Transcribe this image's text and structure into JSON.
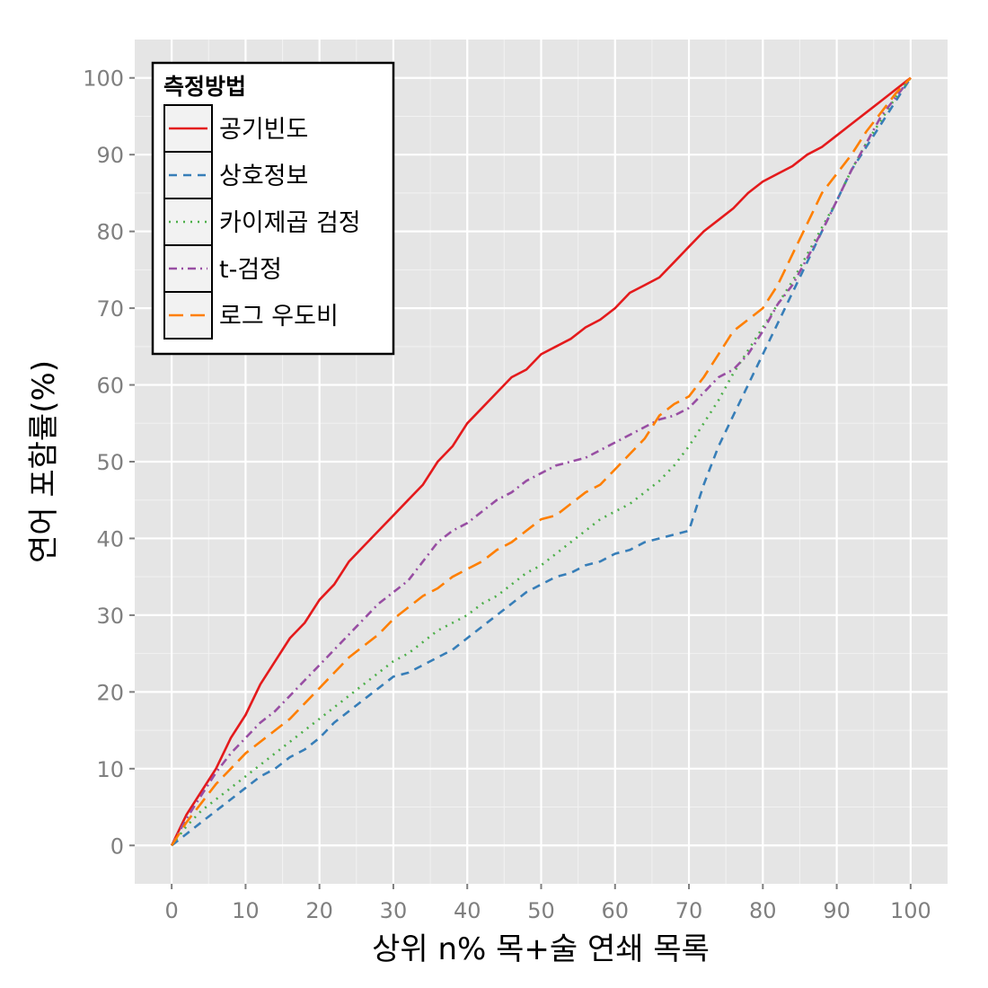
{
  "chart_data": {
    "type": "line",
    "title": "",
    "xlabel": "상위 n% 목+술 연쇄 목록",
    "ylabel": "연어 포함률(%)",
    "xlim": [
      -5,
      105
    ],
    "ylim": [
      -5,
      105
    ],
    "x_ticks": [
      0,
      10,
      20,
      30,
      40,
      50,
      60,
      70,
      80,
      90,
      100
    ],
    "y_ticks": [
      0,
      10,
      20,
      30,
      40,
      50,
      60,
      70,
      80,
      90,
      100
    ],
    "grid": true,
    "legend": {
      "title": "측정방법",
      "position": "top-left"
    },
    "series": [
      {
        "name": "공기빈도",
        "color": "#e41a1c",
        "dash": "",
        "points": [
          [
            0,
            0
          ],
          [
            2,
            4
          ],
          [
            4,
            7
          ],
          [
            6,
            10
          ],
          [
            8,
            14
          ],
          [
            10,
            17
          ],
          [
            12,
            21
          ],
          [
            14,
            24
          ],
          [
            16,
            27
          ],
          [
            18,
            29
          ],
          [
            20,
            32
          ],
          [
            22,
            34
          ],
          [
            24,
            37
          ],
          [
            26,
            39
          ],
          [
            28,
            41
          ],
          [
            30,
            43
          ],
          [
            32,
            45
          ],
          [
            34,
            47
          ],
          [
            36,
            50
          ],
          [
            38,
            52
          ],
          [
            40,
            55
          ],
          [
            42,
            57
          ],
          [
            44,
            59
          ],
          [
            46,
            61
          ],
          [
            48,
            62
          ],
          [
            50,
            64
          ],
          [
            52,
            65
          ],
          [
            54,
            66
          ],
          [
            56,
            67.5
          ],
          [
            58,
            68.5
          ],
          [
            60,
            70
          ],
          [
            62,
            72
          ],
          [
            64,
            73
          ],
          [
            66,
            74
          ],
          [
            68,
            76
          ],
          [
            70,
            78
          ],
          [
            72,
            80
          ],
          [
            74,
            81.5
          ],
          [
            76,
            83
          ],
          [
            78,
            85
          ],
          [
            80,
            86.5
          ],
          [
            82,
            87.5
          ],
          [
            84,
            88.5
          ],
          [
            86,
            90
          ],
          [
            88,
            91
          ],
          [
            90,
            92.5
          ],
          [
            92,
            94
          ],
          [
            94,
            95.5
          ],
          [
            96,
            97
          ],
          [
            98,
            98.5
          ],
          [
            100,
            100
          ]
        ]
      },
      {
        "name": "상호정보",
        "color": "#377eb8",
        "dash": "9,7",
        "points": [
          [
            0,
            0
          ],
          [
            2,
            1.5
          ],
          [
            4,
            3
          ],
          [
            6,
            4.5
          ],
          [
            8,
            6
          ],
          [
            10,
            7.5
          ],
          [
            12,
            9
          ],
          [
            14,
            10
          ],
          [
            16,
            11.5
          ],
          [
            18,
            12.5
          ],
          [
            20,
            14
          ],
          [
            22,
            16
          ],
          [
            24,
            17.5
          ],
          [
            26,
            19
          ],
          [
            28,
            20.5
          ],
          [
            30,
            22
          ],
          [
            32,
            22.5
          ],
          [
            34,
            23.5
          ],
          [
            36,
            24.5
          ],
          [
            38,
            25.5
          ],
          [
            40,
            27
          ],
          [
            42,
            28.5
          ],
          [
            44,
            30
          ],
          [
            46,
            31.5
          ],
          [
            48,
            33
          ],
          [
            50,
            34
          ],
          [
            52,
            35
          ],
          [
            54,
            35.5
          ],
          [
            56,
            36.5
          ],
          [
            58,
            37
          ],
          [
            60,
            38
          ],
          [
            62,
            38.5
          ],
          [
            64,
            39.5
          ],
          [
            66,
            40
          ],
          [
            68,
            40.5
          ],
          [
            70,
            41
          ],
          [
            72,
            47
          ],
          [
            74,
            52
          ],
          [
            76,
            56
          ],
          [
            78,
            60
          ],
          [
            80,
            64
          ],
          [
            82,
            68
          ],
          [
            84,
            72
          ],
          [
            86,
            76
          ],
          [
            88,
            80
          ],
          [
            90,
            84
          ],
          [
            92,
            88
          ],
          [
            94,
            91
          ],
          [
            96,
            94
          ],
          [
            98,
            97
          ],
          [
            100,
            100
          ]
        ]
      },
      {
        "name": "카이제곱 검정",
        "color": "#4daf4a",
        "dash": "2,6",
        "points": [
          [
            0,
            0
          ],
          [
            2,
            2.5
          ],
          [
            4,
            4.5
          ],
          [
            6,
            6
          ],
          [
            8,
            7.5
          ],
          [
            10,
            9
          ],
          [
            12,
            10.5
          ],
          [
            14,
            12
          ],
          [
            16,
            13.5
          ],
          [
            18,
            15
          ],
          [
            20,
            16.5
          ],
          [
            22,
            18
          ],
          [
            24,
            19.5
          ],
          [
            26,
            21
          ],
          [
            28,
            22.5
          ],
          [
            30,
            24
          ],
          [
            32,
            25
          ],
          [
            34,
            26.5
          ],
          [
            36,
            28
          ],
          [
            38,
            29
          ],
          [
            40,
            30
          ],
          [
            42,
            31.5
          ],
          [
            44,
            32.5
          ],
          [
            46,
            34
          ],
          [
            48,
            35.5
          ],
          [
            50,
            36.5
          ],
          [
            52,
            38
          ],
          [
            54,
            39.5
          ],
          [
            56,
            41
          ],
          [
            58,
            42.5
          ],
          [
            60,
            43.5
          ],
          [
            62,
            44.5
          ],
          [
            64,
            46
          ],
          [
            66,
            47.5
          ],
          [
            68,
            49.5
          ],
          [
            70,
            52
          ],
          [
            72,
            55
          ],
          [
            74,
            58
          ],
          [
            76,
            61.5
          ],
          [
            78,
            64.5
          ],
          [
            80,
            67.5
          ],
          [
            82,
            70.5
          ],
          [
            84,
            73.5
          ],
          [
            86,
            77
          ],
          [
            88,
            80.5
          ],
          [
            90,
            84
          ],
          [
            92,
            88
          ],
          [
            94,
            91.5
          ],
          [
            96,
            94.5
          ],
          [
            98,
            97.5
          ],
          [
            100,
            100
          ]
        ]
      },
      {
        "name": "t-검정",
        "color": "#984ea3",
        "dash": "9,5,2,5",
        "points": [
          [
            0,
            0
          ],
          [
            2,
            3.5
          ],
          [
            4,
            6.5
          ],
          [
            6,
            9.5
          ],
          [
            8,
            12
          ],
          [
            10,
            14
          ],
          [
            12,
            16
          ],
          [
            14,
            17.5
          ],
          [
            16,
            19.5
          ],
          [
            18,
            21.5
          ],
          [
            20,
            23.5
          ],
          [
            22,
            25.5
          ],
          [
            24,
            27.5
          ],
          [
            26,
            29.5
          ],
          [
            28,
            31.5
          ],
          [
            30,
            33
          ],
          [
            32,
            34.5
          ],
          [
            34,
            37
          ],
          [
            36,
            39.5
          ],
          [
            38,
            41
          ],
          [
            40,
            42
          ],
          [
            42,
            43.5
          ],
          [
            44,
            45
          ],
          [
            46,
            46
          ],
          [
            48,
            47.5
          ],
          [
            50,
            48.5
          ],
          [
            52,
            49.5
          ],
          [
            54,
            50
          ],
          [
            56,
            50.5
          ],
          [
            58,
            51.5
          ],
          [
            60,
            52.5
          ],
          [
            62,
            53.5
          ],
          [
            64,
            54.5
          ],
          [
            66,
            55.5
          ],
          [
            68,
            56
          ],
          [
            70,
            57
          ],
          [
            72,
            59
          ],
          [
            74,
            61
          ],
          [
            76,
            62
          ],
          [
            78,
            64
          ],
          [
            80,
            67
          ],
          [
            82,
            70.5
          ],
          [
            84,
            73
          ],
          [
            86,
            76.5
          ],
          [
            88,
            80
          ],
          [
            90,
            84
          ],
          [
            92,
            88
          ],
          [
            94,
            91.5
          ],
          [
            96,
            95
          ],
          [
            98,
            97.5
          ],
          [
            100,
            100
          ]
        ]
      },
      {
        "name": "로그 우도비",
        "color": "#ff7f00",
        "dash": "16,8",
        "points": [
          [
            0,
            0
          ],
          [
            2,
            3
          ],
          [
            4,
            5.5
          ],
          [
            6,
            8
          ],
          [
            8,
            10
          ],
          [
            10,
            12
          ],
          [
            12,
            13.5
          ],
          [
            14,
            15
          ],
          [
            16,
            16.5
          ],
          [
            18,
            18.5
          ],
          [
            20,
            20.5
          ],
          [
            22,
            22.5
          ],
          [
            24,
            24.5
          ],
          [
            26,
            26
          ],
          [
            28,
            27.5
          ],
          [
            30,
            29.5
          ],
          [
            32,
            31
          ],
          [
            34,
            32.5
          ],
          [
            36,
            33.5
          ],
          [
            38,
            35
          ],
          [
            40,
            36
          ],
          [
            42,
            37
          ],
          [
            44,
            38.5
          ],
          [
            46,
            39.5
          ],
          [
            48,
            41
          ],
          [
            50,
            42.5
          ],
          [
            52,
            43
          ],
          [
            54,
            44.5
          ],
          [
            56,
            46
          ],
          [
            58,
            47
          ],
          [
            60,
            49
          ],
          [
            62,
            51
          ],
          [
            64,
            53
          ],
          [
            66,
            56
          ],
          [
            68,
            57.5
          ],
          [
            70,
            58.5
          ],
          [
            72,
            61
          ],
          [
            74,
            64
          ],
          [
            76,
            67
          ],
          [
            78,
            68.5
          ],
          [
            80,
            70
          ],
          [
            82,
            73
          ],
          [
            84,
            77
          ],
          [
            86,
            81
          ],
          [
            88,
            85
          ],
          [
            90,
            87.5
          ],
          [
            92,
            90
          ],
          [
            94,
            93
          ],
          [
            96,
            95.5
          ],
          [
            98,
            98
          ],
          [
            100,
            100
          ]
        ]
      }
    ]
  }
}
